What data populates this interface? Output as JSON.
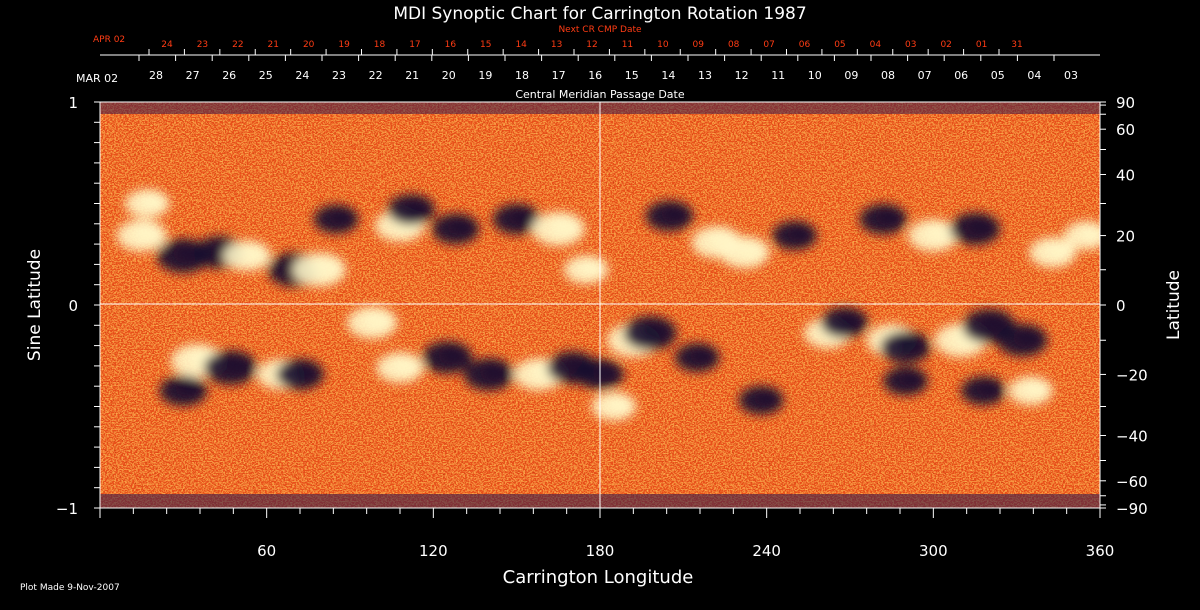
{
  "chart_data": {
    "type": "heatmap",
    "title": "MDI Synoptic Chart for Carrington Rotation 1987",
    "xlabel": "Carrington Longitude",
    "ylabel_left": "Sine Latitude",
    "ylabel_right": "Latitude",
    "xlim": [
      0,
      360
    ],
    "ylim": [
      -1,
      1
    ],
    "x_ticks": [
      60,
      120,
      180,
      240,
      300,
      360
    ],
    "y_ticks_left": [
      {
        "value": 1,
        "label": "1"
      },
      {
        "value": 0,
        "label": "0"
      },
      {
        "value": -1,
        "label": "−1"
      }
    ],
    "y_ticks_right": [
      90,
      60,
      40,
      20,
      0,
      -20,
      -40,
      -60,
      -90
    ],
    "top_axis": {
      "label": "Central Meridian Passage Date",
      "start_label": "MAR 02",
      "dates": [
        "28",
        "27",
        "26",
        "25",
        "24",
        "23",
        "22",
        "21",
        "20",
        "19",
        "18",
        "17",
        "16",
        "15",
        "14",
        "13",
        "12",
        "11",
        "10",
        "09",
        "08",
        "07",
        "06",
        "05",
        "04",
        "03"
      ]
    },
    "next_cr_axis": {
      "label": "Next CR CMP Date",
      "start_label": "APR 02",
      "dates": [
        "24",
        "23",
        "22",
        "21",
        "20",
        "19",
        "18",
        "17",
        "16",
        "15",
        "14",
        "13",
        "12",
        "11",
        "10",
        "09",
        "08",
        "07",
        "06",
        "05",
        "04",
        "03",
        "02",
        "01",
        "31"
      ]
    },
    "colors": {
      "background": "#000000",
      "text": "#ffffff",
      "next_cr_text": "#ff3c14",
      "map_base": "#e8501a",
      "map_positive": "#fff6c8",
      "map_negative": "#1a1030"
    },
    "magnetic_regions": [
      {
        "lon": 15,
        "lat": 20,
        "polarity": "positive",
        "strength": 0.8
      },
      {
        "lon": 17,
        "lat": 30,
        "polarity": "positive",
        "strength": 0.6
      },
      {
        "lon": 30,
        "lat": 14,
        "polarity": "negative",
        "strength": 0.9
      },
      {
        "lon": 43,
        "lat": 15,
        "polarity": "negative",
        "strength": 0.8
      },
      {
        "lon": 53,
        "lat": 14,
        "polarity": "positive",
        "strength": 0.7
      },
      {
        "lon": 70,
        "lat": 10,
        "polarity": "negative",
        "strength": 0.9
      },
      {
        "lon": 79,
        "lat": 10,
        "polarity": "positive",
        "strength": 0.9
      },
      {
        "lon": 85,
        "lat": 25,
        "polarity": "negative",
        "strength": 0.6
      },
      {
        "lon": 108,
        "lat": 23,
        "polarity": "positive",
        "strength": 0.8
      },
      {
        "lon": 112,
        "lat": 28,
        "polarity": "negative",
        "strength": 0.7
      },
      {
        "lon": 128,
        "lat": 22,
        "polarity": "negative",
        "strength": 0.7
      },
      {
        "lon": 150,
        "lat": 25,
        "polarity": "negative",
        "strength": 0.7
      },
      {
        "lon": 165,
        "lat": 22,
        "polarity": "positive",
        "strength": 0.9
      },
      {
        "lon": 175,
        "lat": 10,
        "polarity": "positive",
        "strength": 0.6
      },
      {
        "lon": 205,
        "lat": 26,
        "polarity": "negative",
        "strength": 0.7
      },
      {
        "lon": 222,
        "lat": 18,
        "polarity": "positive",
        "strength": 0.8
      },
      {
        "lon": 232,
        "lat": 15,
        "polarity": "positive",
        "strength": 0.8
      },
      {
        "lon": 250,
        "lat": 20,
        "polarity": "negative",
        "strength": 0.6
      },
      {
        "lon": 282,
        "lat": 25,
        "polarity": "negative",
        "strength": 0.7
      },
      {
        "lon": 300,
        "lat": 20,
        "polarity": "positive",
        "strength": 0.8
      },
      {
        "lon": 315,
        "lat": 22,
        "polarity": "negative",
        "strength": 0.8
      },
      {
        "lon": 343,
        "lat": 15,
        "polarity": "positive",
        "strength": 0.7
      },
      {
        "lon": 355,
        "lat": 20,
        "polarity": "positive",
        "strength": 0.6
      },
      {
        "lon": 35,
        "lat": -16,
        "polarity": "positive",
        "strength": 0.9
      },
      {
        "lon": 47,
        "lat": -18,
        "polarity": "negative",
        "strength": 0.9
      },
      {
        "lon": 30,
        "lat": -25,
        "polarity": "negative",
        "strength": 0.7
      },
      {
        "lon": 65,
        "lat": -20,
        "polarity": "positive",
        "strength": 0.7
      },
      {
        "lon": 72,
        "lat": -20,
        "polarity": "negative",
        "strength": 0.7
      },
      {
        "lon": 98,
        "lat": -5,
        "polarity": "positive",
        "strength": 0.8
      },
      {
        "lon": 108,
        "lat": -18,
        "polarity": "positive",
        "strength": 0.7
      },
      {
        "lon": 125,
        "lat": -15,
        "polarity": "negative",
        "strength": 0.8
      },
      {
        "lon": 140,
        "lat": -20,
        "polarity": "negative",
        "strength": 0.8
      },
      {
        "lon": 158,
        "lat": -20,
        "polarity": "positive",
        "strength": 0.8
      },
      {
        "lon": 170,
        "lat": -18,
        "polarity": "negative",
        "strength": 0.8
      },
      {
        "lon": 180,
        "lat": -20,
        "polarity": "negative",
        "strength": 0.7
      },
      {
        "lon": 185,
        "lat": -30,
        "polarity": "positive",
        "strength": 0.6
      },
      {
        "lon": 192,
        "lat": -10,
        "polarity": "positive",
        "strength": 0.9
      },
      {
        "lon": 198,
        "lat": -8,
        "polarity": "negative",
        "strength": 0.9
      },
      {
        "lon": 215,
        "lat": -15,
        "polarity": "negative",
        "strength": 0.6
      },
      {
        "lon": 238,
        "lat": -28,
        "polarity": "negative",
        "strength": 0.6
      },
      {
        "lon": 262,
        "lat": -8,
        "polarity": "positive",
        "strength": 0.7
      },
      {
        "lon": 268,
        "lat": -5,
        "polarity": "negative",
        "strength": 0.7
      },
      {
        "lon": 285,
        "lat": -10,
        "polarity": "positive",
        "strength": 0.8
      },
      {
        "lon": 290,
        "lat": -12,
        "polarity": "negative",
        "strength": 0.8
      },
      {
        "lon": 290,
        "lat": -22,
        "polarity": "negative",
        "strength": 0.6
      },
      {
        "lon": 310,
        "lat": -10,
        "polarity": "positive",
        "strength": 0.9
      },
      {
        "lon": 320,
        "lat": -6,
        "polarity": "negative",
        "strength": 0.9
      },
      {
        "lon": 332,
        "lat": -10,
        "polarity": "negative",
        "strength": 0.8
      },
      {
        "lon": 318,
        "lat": -25,
        "polarity": "negative",
        "strength": 0.6
      },
      {
        "lon": 335,
        "lat": -25,
        "polarity": "positive",
        "strength": 0.6
      }
    ]
  },
  "footer": {
    "plot_made": "Plot Made  9-Nov-2007"
  }
}
